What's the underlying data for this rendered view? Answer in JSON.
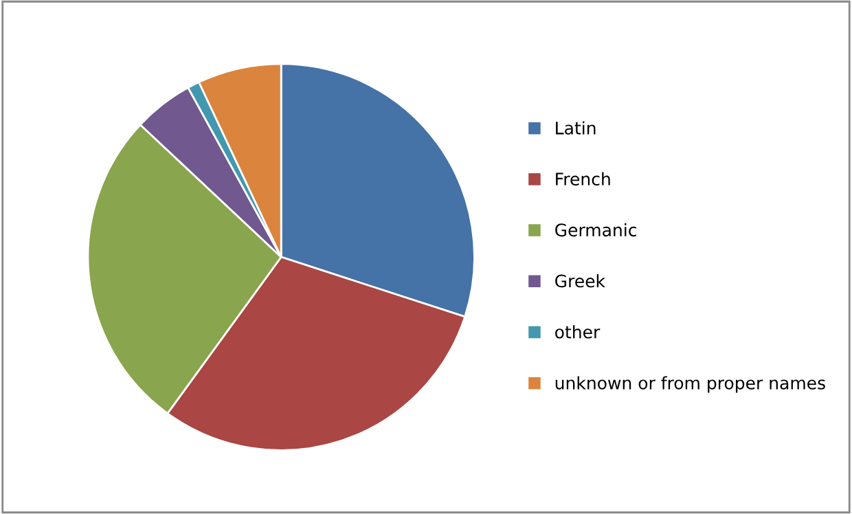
{
  "chart_data": {
    "type": "pie",
    "categories": [
      "Latin",
      "French",
      "Germanic",
      "Greek",
      "other",
      "unknown or from proper names"
    ],
    "values": [
      30,
      30,
      27,
      5,
      1,
      7
    ],
    "colors": [
      "#4572a7",
      "#aa4643",
      "#89a54e",
      "#71588f",
      "#4198af",
      "#db843d"
    ],
    "legend": "right"
  }
}
